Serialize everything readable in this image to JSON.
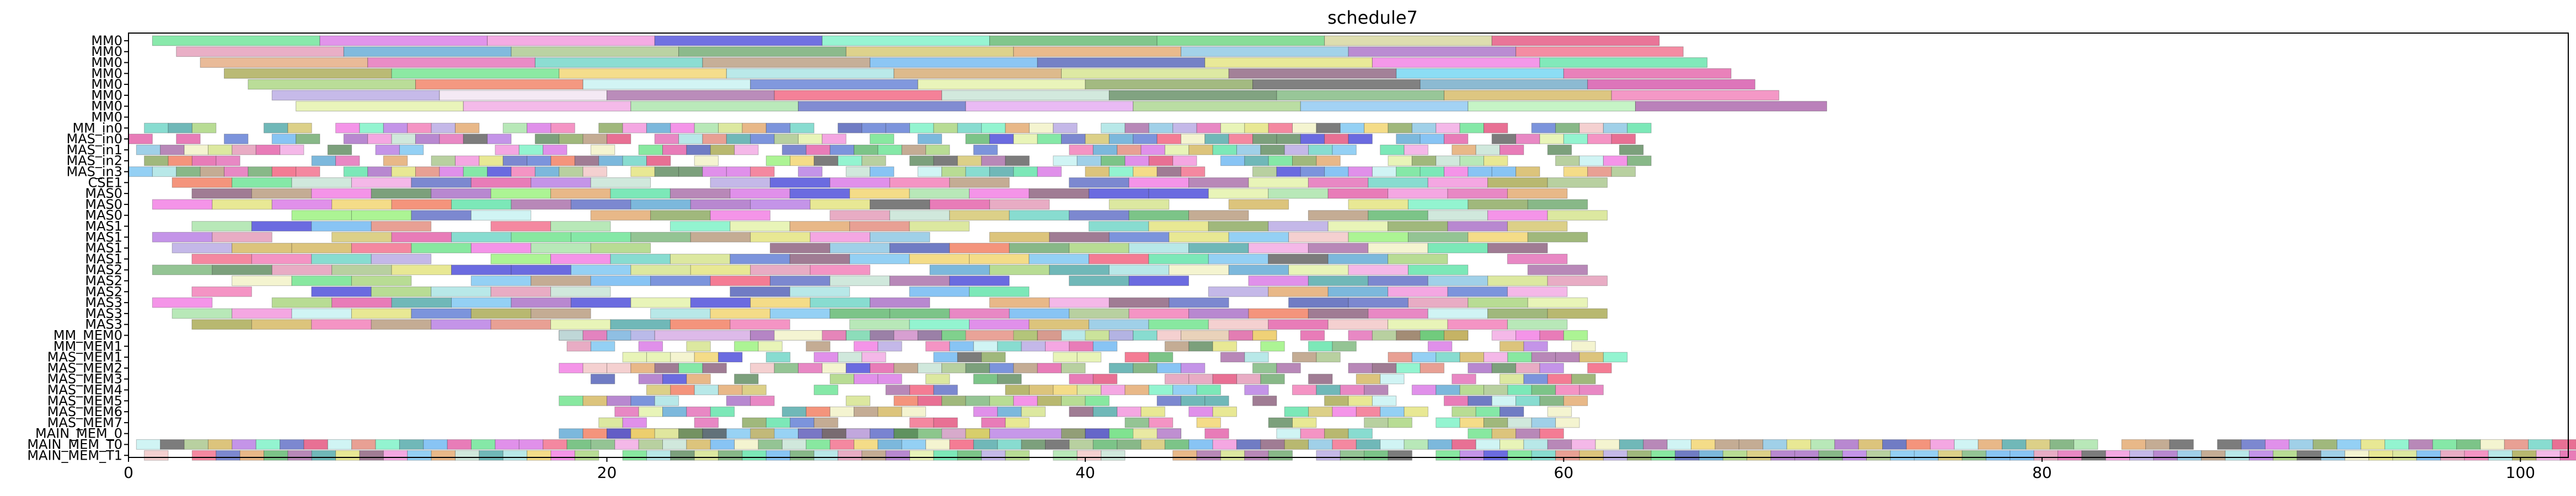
{
  "chart_data": {
    "type": "gantt",
    "title": "schedule7",
    "xlabel": "",
    "ylabel": "",
    "xlim": [
      0,
      102
    ],
    "xticks": [
      0,
      20,
      40,
      60,
      80,
      100
    ],
    "grid": false,
    "rows": [
      "MM0",
      "MM0",
      "MM0",
      "MM0",
      "MM0",
      "MM0",
      "MM0",
      "MM0",
      "MM_in0",
      "MAS_in0",
      "MAS_in1",
      "MAS_in2",
      "MAS_in3",
      "CSE1",
      "MAS0",
      "MAS0",
      "MAS0",
      "MAS1",
      "MAS1",
      "MAS1",
      "MAS1",
      "MAS2",
      "MAS2",
      "MAS2",
      "MAS3",
      "MAS3",
      "MAS3",
      "MM_MEM0",
      "MM_MEM1",
      "MAS_MEM1",
      "MAS_MEM2",
      "MAS_MEM3",
      "MAS_MEM4",
      "MAS_MEM5",
      "MAS_MEM6",
      "MAS_MEM7",
      "MAIN_MEM_0",
      "MAIN_MEM_T0",
      "MAIN_MEM_T1"
    ],
    "segments": [
      {
        "row": 0,
        "start": 1,
        "end": 8,
        "color": "#5ce08a"
      },
      {
        "row": 0,
        "start": 8,
        "end": 15,
        "color": "#d66be3"
      },
      {
        "row": 0,
        "start": 15,
        "end": 22,
        "color": "#f08ad8"
      },
      {
        "row": 0,
        "start": 22,
        "end": 29,
        "color": "#3a3ad6"
      },
      {
        "row": 0,
        "start": 29,
        "end": 36,
        "color": "#6ff0c0"
      },
      {
        "row": 0,
        "start": 36,
        "end": 43,
        "color": "#50b060"
      },
      {
        "row": 0,
        "start": 43,
        "end": 50,
        "color": "#5ad070"
      },
      {
        "row": 0,
        "start": 50,
        "end": 57,
        "color": "#d0d090"
      },
      {
        "row": 0,
        "start": 57,
        "end": 64,
        "color": "#e04070"
      },
      {
        "row": 1,
        "start": 2,
        "end": 9,
        "color": "#e090b0"
      },
      {
        "row": 1,
        "start": 9,
        "end": 16,
        "color": "#50a0d0"
      },
      {
        "row": 1,
        "start": 16,
        "end": 23,
        "color": "#a0c080"
      },
      {
        "row": 1,
        "start": 23,
        "end": 30,
        "color": "#60a060"
      },
      {
        "row": 1,
        "start": 30,
        "end": 37,
        "color": "#d0c060"
      },
      {
        "row": 1,
        "start": 37,
        "end": 44,
        "color": "#e0a060"
      },
      {
        "row": 1,
        "start": 44,
        "end": 51,
        "color": "#80c0e0"
      },
      {
        "row": 1,
        "start": 51,
        "end": 58,
        "color": "#a060c0"
      },
      {
        "row": 1,
        "start": 58,
        "end": 65,
        "color": "#f06080"
      },
      {
        "row": 2,
        "start": 3,
        "end": 10,
        "color": "#e0a070"
      },
      {
        "row": 2,
        "start": 10,
        "end": 17,
        "color": "#e060b0"
      },
      {
        "row": 2,
        "start": 17,
        "end": 24,
        "color": "#60d0c0"
      },
      {
        "row": 2,
        "start": 24,
        "end": 31,
        "color": "#b09070"
      },
      {
        "row": 2,
        "start": 31,
        "end": 38,
        "color": "#60b0f0"
      },
      {
        "row": 2,
        "start": 38,
        "end": 45,
        "color": "#4050b0"
      },
      {
        "row": 2,
        "start": 45,
        "end": 52,
        "color": "#e0e070"
      },
      {
        "row": 2,
        "start": 52,
        "end": 59,
        "color": "#f070e0"
      },
      {
        "row": 2,
        "start": 59,
        "end": 66,
        "color": "#50e0a0"
      },
      {
        "row": 3,
        "start": 4,
        "end": 11,
        "color": "#a0a040"
      },
      {
        "row": 3,
        "start": 11,
        "end": 18,
        "color": "#60e080"
      },
      {
        "row": 3,
        "start": 18,
        "end": 25,
        "color": "#f0d060"
      },
      {
        "row": 3,
        "start": 25,
        "end": 32,
        "color": "#a0e0e0"
      },
      {
        "row": 3,
        "start": 32,
        "end": 39,
        "color": "#d0a060"
      },
      {
        "row": 3,
        "start": 39,
        "end": 46,
        "color": "#d0e080"
      },
      {
        "row": 3,
        "start": 46,
        "end": 53,
        "color": "#805070"
      },
      {
        "row": 3,
        "start": 53,
        "end": 60,
        "color": "#60d0f0"
      },
      {
        "row": 3,
        "start": 60,
        "end": 67,
        "color": "#e050a0"
      },
      {
        "row": 4,
        "start": 5,
        "end": 12,
        "color": "#a0d070"
      },
      {
        "row": 4,
        "start": 12,
        "end": 19,
        "color": "#f07050"
      },
      {
        "row": 4,
        "start": 19,
        "end": 26,
        "color": "#c0f0f0"
      },
      {
        "row": 4,
        "start": 26,
        "end": 33,
        "color": "#5070d0"
      },
      {
        "row": 4,
        "start": 33,
        "end": 40,
        "color": "#e0f0a0"
      },
      {
        "row": 4,
        "start": 40,
        "end": 47,
        "color": "#80a050"
      },
      {
        "row": 4,
        "start": 47,
        "end": 54,
        "color": "#505050"
      },
      {
        "row": 4,
        "start": 54,
        "end": 61,
        "color": "#60a0c0"
      },
      {
        "row": 4,
        "start": 61,
        "end": 68,
        "color": "#d040a0"
      },
      {
        "row": 5,
        "start": 6,
        "end": 13,
        "color": "#b0a0e0"
      },
      {
        "row": 5,
        "start": 13,
        "end": 20,
        "color": "#f0e0f0"
      },
      {
        "row": 5,
        "start": 20,
        "end": 27,
        "color": "#a060a0"
      },
      {
        "row": 5,
        "start": 27,
        "end": 34,
        "color": "#f05070"
      },
      {
        "row": 5,
        "start": 34,
        "end": 41,
        "color": "#c0e0d0"
      },
      {
        "row": 5,
        "start": 41,
        "end": 48,
        "color": "#508050"
      },
      {
        "row": 5,
        "start": 48,
        "end": 55,
        "color": "#70b070"
      },
      {
        "row": 5,
        "start": 55,
        "end": 62,
        "color": "#d0b050"
      },
      {
        "row": 5,
        "start": 62,
        "end": 69,
        "color": "#f070b0"
      },
      {
        "row": 6,
        "start": 7,
        "end": 14,
        "color": "#e0f0a0"
      },
      {
        "row": 6,
        "start": 14,
        "end": 21,
        "color": "#f0a0e0"
      },
      {
        "row": 6,
        "start": 21,
        "end": 28,
        "color": "#a0e0a0"
      },
      {
        "row": 6,
        "start": 28,
        "end": 35,
        "color": "#5060c0"
      },
      {
        "row": 6,
        "start": 35,
        "end": 42,
        "color": "#e0a0f0"
      },
      {
        "row": 6,
        "start": 42,
        "end": 49,
        "color": "#a0d080"
      },
      {
        "row": 6,
        "start": 49,
        "end": 56,
        "color": "#80c0f0"
      },
      {
        "row": 6,
        "start": 56,
        "end": 63,
        "color": "#b0f0b0"
      },
      {
        "row": 6,
        "start": 63,
        "end": 71,
        "color": "#a050a0"
      },
      {
        "row": 27,
        "start": 18,
        "end": 22,
        "color": "#a0a0e0"
      },
      {
        "row": 27,
        "start": 22,
        "end": 26,
        "color": "#d0a0e0"
      },
      {
        "row": 27,
        "start": 26,
        "end": 30,
        "color": "#f0f0c0"
      },
      {
        "row": 27,
        "start": 30,
        "end": 34,
        "color": "#60d0a0"
      },
      {
        "row": 27,
        "start": 34,
        "end": 38,
        "color": "#e08070"
      },
      {
        "row": 27,
        "start": 38,
        "end": 42,
        "color": "#a0e0e0"
      },
      {
        "row": 27,
        "start": 44,
        "end": 48,
        "color": "#e0c0a0"
      },
      {
        "row": 27,
        "start": 53,
        "end": 56,
        "color": "#806040"
      },
      {
        "row": 36,
        "start": 20,
        "end": 24,
        "color": "#d0b070"
      },
      {
        "row": 36,
        "start": 24,
        "end": 28,
        "color": "#70c0f0"
      },
      {
        "row": 36,
        "start": 28,
        "end": 32,
        "color": "#f0a0c0"
      },
      {
        "row": 36,
        "start": 32,
        "end": 36,
        "color": "#60b060"
      },
      {
        "row": 36,
        "start": 36,
        "end": 40,
        "color": "#b070e0"
      },
      {
        "row": 36,
        "start": 40,
        "end": 44,
        "color": "#e0e080"
      }
    ],
    "blocks": [
      {
        "rows": [
          8,
          12
        ],
        "start": 0,
        "end": 63,
        "cell": 1,
        "density": 0.82
      },
      {
        "rows": [
          13,
          26
        ],
        "start": 1,
        "end": 60,
        "cell": 2.5,
        "density": 0.85
      },
      {
        "rows": [
          27,
          36
        ],
        "start": 18,
        "end": 62,
        "cell": 1,
        "density": 0.7
      },
      {
        "rows": [
          37,
          38
        ],
        "start": 0,
        "end": 102,
        "cell": 1,
        "density": 0.95
      }
    ],
    "palette": [
      "#5ce08a",
      "#d66be3",
      "#f08ad8",
      "#3a3ad6",
      "#6ff0c0",
      "#50b060",
      "#e04070",
      "#e090b0",
      "#50a0d0",
      "#a0c080",
      "#d0c060",
      "#e0a060",
      "#80c0e0",
      "#a060c0",
      "#f06080",
      "#e060b0",
      "#60d0c0",
      "#b09070",
      "#60b0f0",
      "#4050b0",
      "#e0e070",
      "#f070e0",
      "#50e0a0",
      "#a0a040",
      "#60e080",
      "#f0d060",
      "#a0e0e0",
      "#805070",
      "#e050a0",
      "#a0d070",
      "#f07050",
      "#c0f0f0",
      "#5070d0",
      "#505050",
      "#b0a0e0",
      "#a060a0",
      "#f05070",
      "#c0e0d0",
      "#508050",
      "#70b070",
      "#d0b050",
      "#f070b0",
      "#e0f0a0",
      "#f0a0e0",
      "#a0e0a0",
      "#5060c0",
      "#80a050",
      "#f0f0c0",
      "#d0e080",
      "#70c0f0",
      "#60a060",
      "#b070e0",
      "#e08070",
      "#90f070",
      "#f0c0c0",
      "#40a0a0"
    ]
  }
}
